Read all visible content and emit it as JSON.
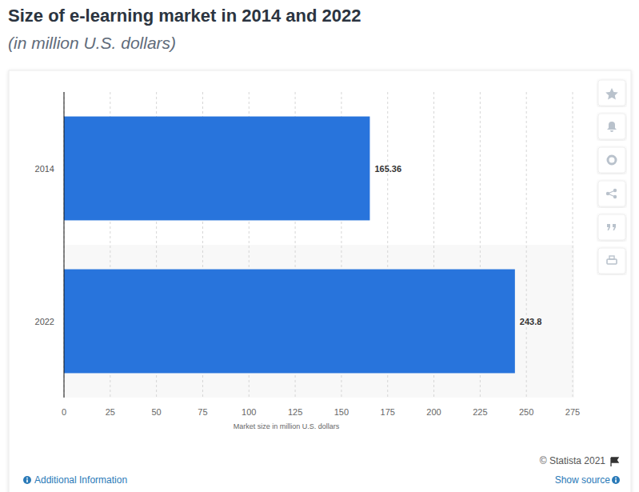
{
  "chart_data": {
    "type": "bar",
    "title": "Size of e-learning market in 2014 and 2022",
    "subtitle": "(in million U.S. dollars)",
    "categories": [
      "2014",
      "2022"
    ],
    "values": [
      165.36,
      243.8
    ],
    "color": "#2874dc",
    "orientation": "horizontal",
    "data_labels": true,
    "grid": true,
    "x_label": "Market size in million U.S. dollars",
    "xlim": [
      0,
      275
    ],
    "xticks": [
      0,
      25,
      50,
      75,
      100,
      125,
      150,
      175,
      200,
      225,
      250,
      275
    ],
    "source_note": "© Statista 2021",
    "links": [
      "Additional Information",
      "Show source"
    ]
  }
}
